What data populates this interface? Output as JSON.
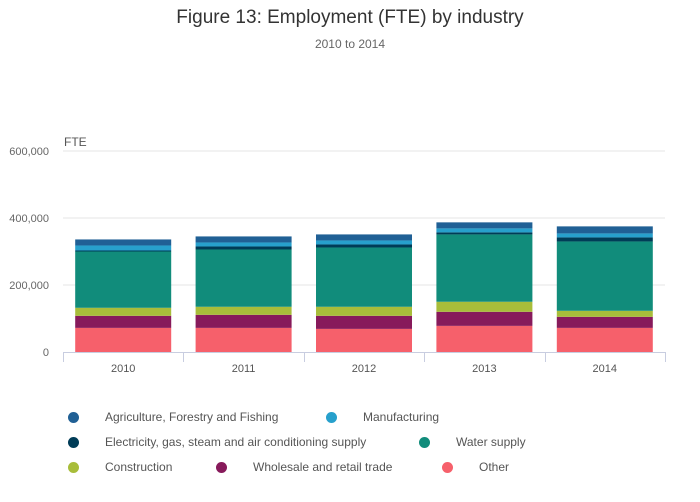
{
  "chart_data": {
    "type": "bar",
    "stacked": true,
    "title": "Figure 13: Employment (FTE) by industry",
    "subtitle": "2010 to 2014",
    "ylabel": "FTE",
    "xlabel": "",
    "ylim": [
      0,
      600000
    ],
    "yticks": [
      0,
      200000,
      400000,
      600000
    ],
    "ytick_labels": [
      "0",
      "200,000",
      "400,000",
      "600,000"
    ],
    "categories": [
      "2010",
      "2011",
      "2012",
      "2013",
      "2014"
    ],
    "grid": true,
    "legend_position": "bottom",
    "series": [
      {
        "name": "Other",
        "color": "#f6606b",
        "values": [
          72000,
          72000,
          69000,
          78000,
          72000
        ]
      },
      {
        "name": "Wholesale and retail trade",
        "color": "#871a5b",
        "values": [
          36000,
          39000,
          39000,
          42000,
          33000
        ]
      },
      {
        "name": "Construction",
        "color": "#a8bd3a",
        "values": [
          24000,
          24000,
          27000,
          30000,
          18000
        ]
      },
      {
        "name": "Water supply",
        "color": "#118c7b",
        "values": [
          168000,
          171000,
          177000,
          201000,
          207000
        ]
      },
      {
        "name": "Electricity, gas, steam and air conditioning supply",
        "color": "#003c57",
        "values": [
          3000,
          9000,
          9000,
          6000,
          12000
        ]
      },
      {
        "name": "Manufacturing",
        "color": "#27a0cc",
        "values": [
          15000,
          12000,
          12000,
          12000,
          12000
        ]
      },
      {
        "name": "Agriculture, Forestry and Fishing",
        "color": "#206095",
        "values": [
          18000,
          18000,
          18000,
          18000,
          21000
        ]
      }
    ],
    "legend_order": [
      "Agriculture, Forestry and Fishing",
      "Manufacturing",
      "Electricity, gas, steam and air conditioning supply",
      "Water supply",
      "Construction",
      "Wholesale and retail trade",
      "Other"
    ]
  }
}
